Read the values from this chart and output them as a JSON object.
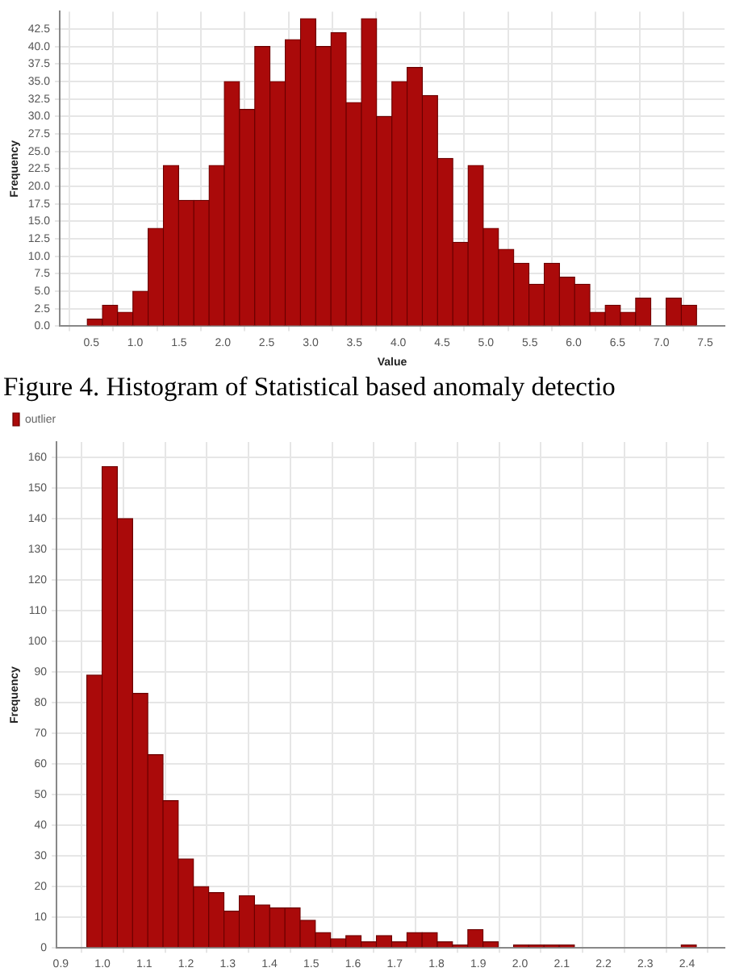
{
  "chart_data": [
    {
      "type": "histogram",
      "xlabel": "Value",
      "ylabel": "Frequency",
      "color": "#aa0a0a",
      "grid": true,
      "annotations": [
        "Figure 4. Histogram of Statistical based anomaly detectio"
      ],
      "bins": [
        0.453,
        0.627,
        0.8,
        0.974,
        1.148,
        1.322,
        1.495,
        1.669,
        1.843,
        2.016,
        2.19,
        2.364,
        2.537,
        2.711,
        2.885,
        3.059,
        3.232,
        3.406,
        3.58,
        3.753,
        3.927,
        4.101,
        4.274,
        4.448,
        4.622,
        4.796,
        4.969,
        5.143,
        5.317,
        5.49,
        5.664,
        5.838,
        6.011,
        6.185,
        6.359,
        6.533,
        6.706,
        6.88,
        7.054,
        7.227,
        7.401
      ],
      "values": [
        1,
        3,
        2,
        5,
        14,
        23,
        18,
        18,
        23,
        35,
        31,
        40,
        35,
        41,
        44,
        40,
        42,
        32,
        44,
        30,
        35,
        37,
        33,
        24,
        12,
        23,
        14,
        11,
        9,
        6,
        9,
        7,
        6,
        2,
        3,
        2,
        4,
        0,
        4,
        3
      ],
      "xlim": [
        0.14,
        7.72
      ],
      "ylim": [
        0,
        45
      ],
      "xticks": [
        0.5,
        {
          "value": 1,
          "label": "1.0"
        },
        1.5,
        {
          "value": 2,
          "label": "2.0"
        },
        2.5,
        {
          "value": 3,
          "label": "3.0"
        },
        3.5,
        {
          "value": 4,
          "label": "4.0"
        },
        4.5,
        {
          "value": 5,
          "label": "5.0"
        },
        5.5,
        {
          "value": 6,
          "label": "6.0"
        },
        6.5,
        {
          "value": 7,
          "label": "7.0"
        },
        7.5
      ],
      "yticks": [
        {
          "value": 0,
          "label": "0.0"
        },
        2.5,
        {
          "value": 5,
          "label": "5.0"
        },
        7.5,
        {
          "value": 10,
          "label": "10.0"
        },
        12.5,
        {
          "value": 15,
          "label": "15.0"
        },
        17.5,
        {
          "value": 20,
          "label": "20.0"
        },
        22.5,
        {
          "value": 25,
          "label": "25.0"
        },
        27.5,
        {
          "value": 30,
          "label": "30.0"
        },
        32.5,
        {
          "value": 35,
          "label": "35.0"
        },
        37.5,
        {
          "value": 40,
          "label": "40.0"
        },
        42.5
      ]
    },
    {
      "type": "histogram",
      "ylabel": "Frequency",
      "grid": true,
      "legend": "top left",
      "bins": [
        0.9625,
        0.999,
        1.0355,
        1.072,
        1.1085,
        1.145,
        1.1815,
        1.218,
        1.2545,
        1.291,
        1.3275,
        1.364,
        1.4005,
        1.437,
        1.4735,
        1.51,
        1.5465,
        1.583,
        1.6195,
        1.656,
        1.6925,
        1.729,
        1.7655,
        1.802,
        1.8385,
        1.875,
        1.9115,
        1.948,
        1.9845,
        2.021,
        2.0575,
        2.094,
        2.1305,
        2.167,
        2.2035,
        2.24,
        2.2765,
        2.313,
        2.3495,
        2.386,
        2.4225
      ],
      "series": [
        {
          "name": "outlier",
          "color": "#aa0a0a",
          "values": [
            89,
            157,
            140,
            83,
            63,
            48,
            29,
            20,
            18,
            12,
            17,
            14,
            13,
            13,
            9,
            5,
            3,
            4,
            2,
            4,
            2,
            5,
            5,
            2,
            1,
            6,
            2,
            0,
            1,
            1,
            1,
            1,
            0,
            0,
            0,
            0,
            0,
            0,
            0,
            1
          ]
        }
      ],
      "xlim": [
        0.89,
        2.49
      ],
      "ylim": [
        0,
        165
      ],
      "xticks": [
        0.9,
        {
          "value": 1,
          "label": "1.0"
        },
        1.1,
        1.2,
        1.3,
        1.4,
        1.5,
        1.6,
        1.7,
        1.8,
        1.9,
        {
          "value": 2,
          "label": "2.0"
        },
        2.1,
        2.2,
        2.3,
        2.4
      ],
      "yticks": [
        0,
        10,
        20,
        30,
        40,
        50,
        60,
        70,
        80,
        90,
        100,
        110,
        120,
        130,
        140,
        150,
        160
      ]
    }
  ]
}
